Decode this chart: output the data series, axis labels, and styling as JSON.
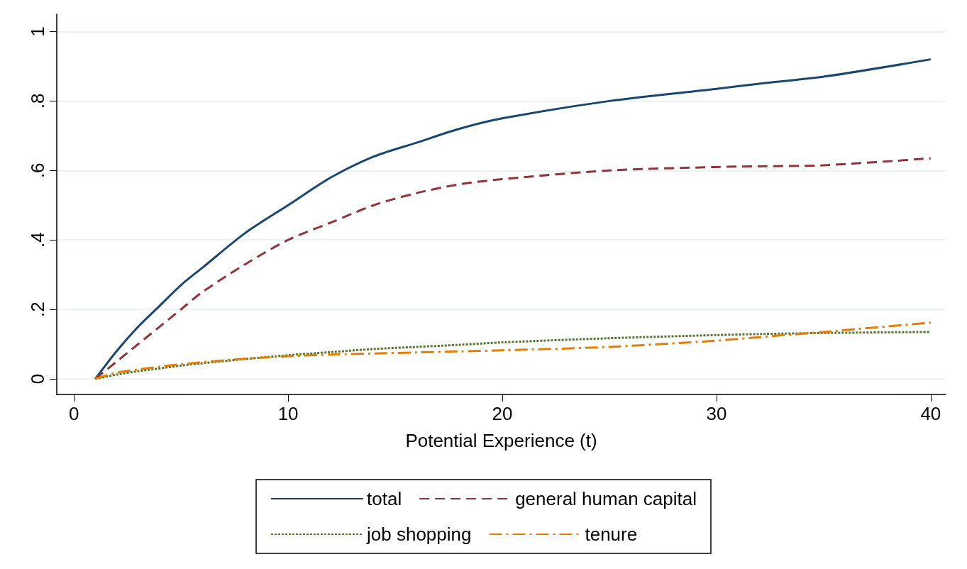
{
  "chart_data": {
    "type": "line",
    "xlabel": "Potential Experience (t)",
    "xlim": [
      -0.8,
      40.7
    ],
    "ylim": [
      -0.045,
      1.05
    ],
    "xticks": [
      0,
      10,
      20,
      30,
      40
    ],
    "yticks": [
      0,
      {
        "value": 0.2,
        "label": ".2"
      },
      {
        "value": 0.4,
        "label": ".4"
      },
      {
        "value": 0.6,
        "label": ".6"
      },
      {
        "value": 0.8,
        "label": ".8"
      },
      1
    ],
    "grid": "y",
    "legend": "bottom",
    "marker": "none",
    "x": [
      1,
      2,
      3,
      4,
      5,
      6,
      8,
      10,
      12,
      14,
      16,
      18,
      20,
      25,
      30,
      32,
      35,
      40
    ],
    "series": [
      {
        "name": "total",
        "color": "#1a476f",
        "line_style": "solid",
        "values": [
          0,
          0.08,
          0.15,
          0.21,
          0.27,
          0.32,
          0.42,
          0.5,
          0.58,
          0.64,
          0.68,
          0.72,
          0.75,
          0.8,
          0.835,
          0.85,
          0.87,
          0.92
        ]
      },
      {
        "name": "general human capital",
        "color": "#90353b",
        "line_style": "dashed",
        "values": [
          0,
          0.05,
          0.1,
          0.15,
          0.2,
          0.25,
          0.33,
          0.4,
          0.45,
          0.5,
          0.535,
          0.56,
          0.575,
          0.6,
          0.61,
          0.612,
          0.615,
          0.635
        ]
      },
      {
        "name": "job shopping",
        "color": "#55752f",
        "line_style": "dotted",
        "values": [
          0,
          0.012,
          0.022,
          0.03,
          0.038,
          0.045,
          0.057,
          0.068,
          0.077,
          0.086,
          0.092,
          0.098,
          0.105,
          0.117,
          0.126,
          0.129,
          0.132,
          0.135
        ]
      },
      {
        "name": "tenure",
        "color": "#e37e00",
        "line_style": "dashdot",
        "values": [
          0,
          0.018,
          0.027,
          0.035,
          0.042,
          0.048,
          0.058,
          0.065,
          0.07,
          0.073,
          0.076,
          0.079,
          0.082,
          0.092,
          0.11,
          0.12,
          0.135,
          0.162
        ]
      }
    ]
  }
}
